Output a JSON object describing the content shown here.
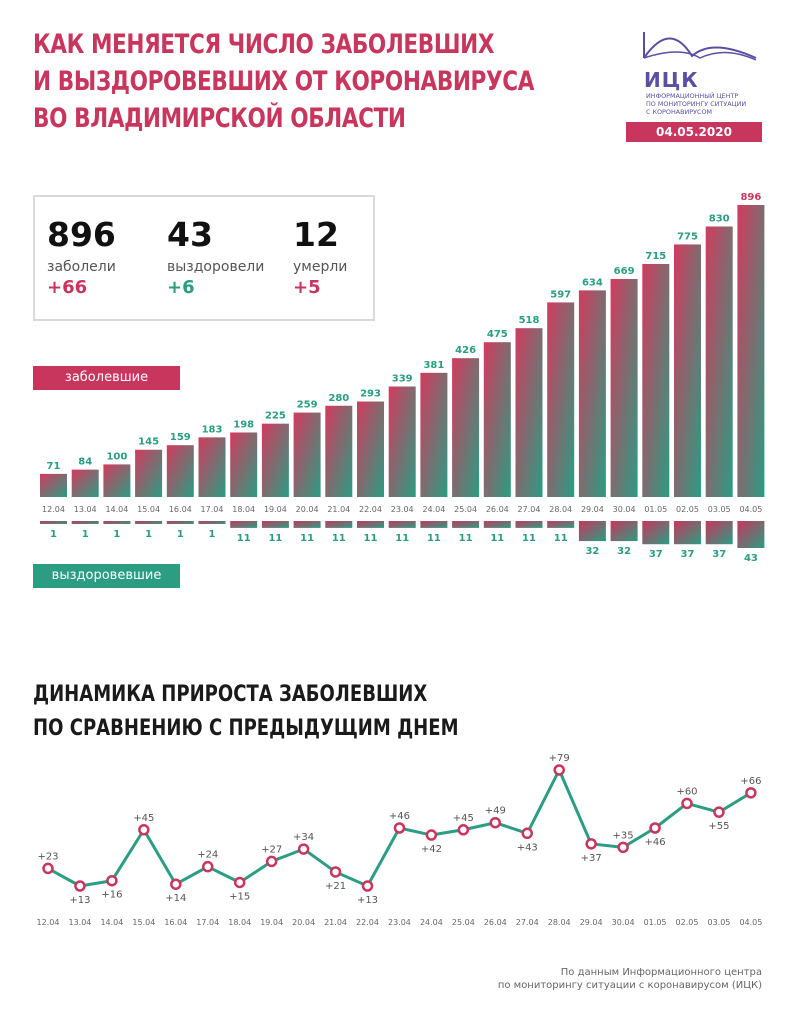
{
  "header": {
    "title_lines": [
      "КАК МЕНЯЕТСЯ ЧИСЛО ЗАБОЛЕВШИХ",
      "И ВЫЗДОРОВЕВШИХ ОТ КОРОНАВИРУСА",
      "ВО ВЛАДИМИРСКОЙ ОБЛАСТИ"
    ],
    "logo_abbr": "ИЦК",
    "logo_name_lines": [
      "ИНФОРМАЦИОННЫЙ ЦЕНТР",
      "ПО МОНИТОРИНГУ СИТУАЦИИ",
      "С КОРОНАВИРУСОМ"
    ],
    "date": "04.05.2020"
  },
  "stats": [
    {
      "value": "896",
      "label": "заболели",
      "delta": "+66",
      "color": "#c8365d"
    },
    {
      "value": "43",
      "label": "выздоровели",
      "delta": "+6",
      "color": "#2a9d82"
    },
    {
      "value": "12",
      "label": "умерли",
      "delta": "+5",
      "color": "#c8365d"
    }
  ],
  "legend": {
    "sick_label": "заболевшие",
    "recovered_label": "выздоровевшие"
  },
  "second_title_lines": [
    "ДИНАМИКА ПРИРОСТА ЗАБОЛЕВШИХ",
    "ПО СРАВНЕНИЮ С ПРЕДЫДУЩИМ ДНЕМ"
  ],
  "source_lines": [
    "По данным Информационного центра",
    "по мониторингу ситуации с коронавирусом (ИЦК)"
  ],
  "colors": {
    "brand_red": "#c8365d",
    "brand_green": "#2a9d82",
    "brand_purple": "#5b4fa3"
  },
  "chart_data": [
    {
      "type": "bar",
      "categories": [
        "12.04",
        "13.04",
        "14.04",
        "15.04",
        "16.04",
        "17.04",
        "18.04",
        "19.04",
        "20.04",
        "21.04",
        "22.04",
        "23.04",
        "24.04",
        "25.04",
        "26.04",
        "27.04",
        "28.04",
        "29.04",
        "30.04",
        "01.05",
        "02.05",
        "03.05",
        "04.05"
      ],
      "series": [
        {
          "name": "заболевшие",
          "values": [
            71,
            84,
            100,
            145,
            159,
            183,
            198,
            225,
            259,
            280,
            293,
            339,
            381,
            426,
            475,
            518,
            597,
            634,
            669,
            715,
            775,
            830,
            896
          ]
        },
        {
          "name": "выздоровевшие",
          "values": [
            1,
            1,
            1,
            1,
            1,
            1,
            11,
            11,
            11,
            11,
            11,
            11,
            11,
            11,
            11,
            11,
            11,
            32,
            32,
            37,
            37,
            37,
            43
          ]
        }
      ]
    },
    {
      "type": "line",
      "categories": [
        "12.04",
        "13.04",
        "14.04",
        "15.04",
        "16.04",
        "17.04",
        "18.04",
        "19.04",
        "20.04",
        "21.04",
        "22.04",
        "23.04",
        "24.04",
        "25.04",
        "26.04",
        "27.04",
        "28.04",
        "29.04",
        "30.04",
        "01.05",
        "02.05",
        "03.05",
        "04.05"
      ],
      "values": [
        23,
        13,
        16,
        45,
        14,
        24,
        15,
        27,
        34,
        21,
        13,
        46,
        42,
        45,
        49,
        43,
        79,
        37,
        35,
        46,
        60,
        55,
        66
      ],
      "labels": [
        "+23",
        "+13",
        "+16",
        "+45",
        "+14",
        "+24",
        "+15",
        "+27",
        "+34",
        "+21",
        "+13",
        "+46",
        "+42",
        "+45",
        "+49",
        "+43",
        "+79",
        "+37",
        "+35",
        "+46",
        "+60",
        "+55",
        "+66"
      ]
    }
  ]
}
